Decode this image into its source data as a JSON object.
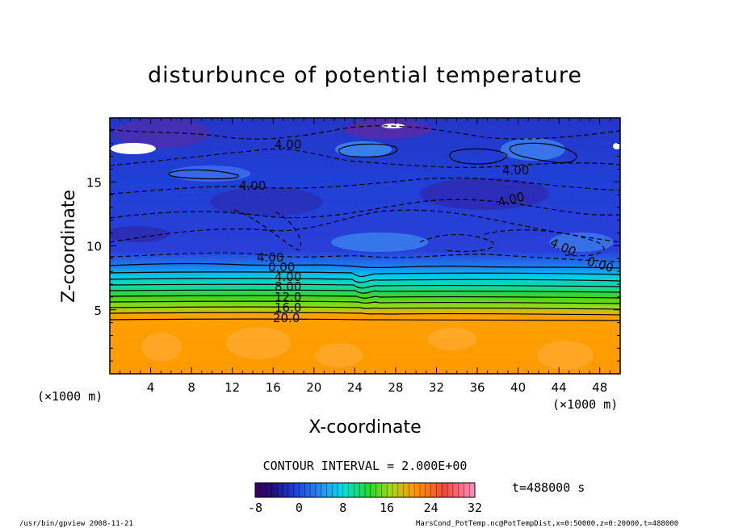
{
  "chart_data": {
    "type": "heatmap",
    "title": "disturbunce of potential temperature",
    "xlabel": "X-coordinate",
    "ylabel": "Z-coordinate",
    "x_unit_left": "(×1000 m)",
    "x_unit_right": "(×1000 m)",
    "xlim": [
      0,
      50
    ],
    "ylim": [
      0,
      20
    ],
    "x_ticks": [
      "4",
      "8",
      "12",
      "16",
      "20",
      "24",
      "28",
      "32",
      "36",
      "40",
      "44",
      "48"
    ],
    "y_ticks": [
      "5",
      "10",
      "15"
    ],
    "contour_interval_text": "CONTOUR INTERVAL = 2.000E+00",
    "time_text": "t=488000 s",
    "colorbar": {
      "ticks": [
        "-8",
        "0",
        "8",
        "16",
        "24",
        "32"
      ],
      "range": [
        -8,
        32
      ]
    },
    "contour_labels": [
      "4.00",
      "4.00",
      "4.00",
      "4.00",
      "4.00",
      "4.00",
      "0.00",
      "4.00",
      "8.00",
      "12.0",
      "16.0",
      "20.0",
      "0.00"
    ],
    "colors": {
      "low": "#2a006b",
      "mid_blue": "#1d4ad9",
      "cyan": "#00d9e8",
      "green": "#33d11a",
      "warm": "#ff9a00"
    }
  },
  "footer": {
    "left": "/usr/bin/gpview   2008-11-21",
    "right": "MarsCond_PotTemp.nc@PotTempDist,x=0:50000,z=0:20000,t=488000"
  }
}
